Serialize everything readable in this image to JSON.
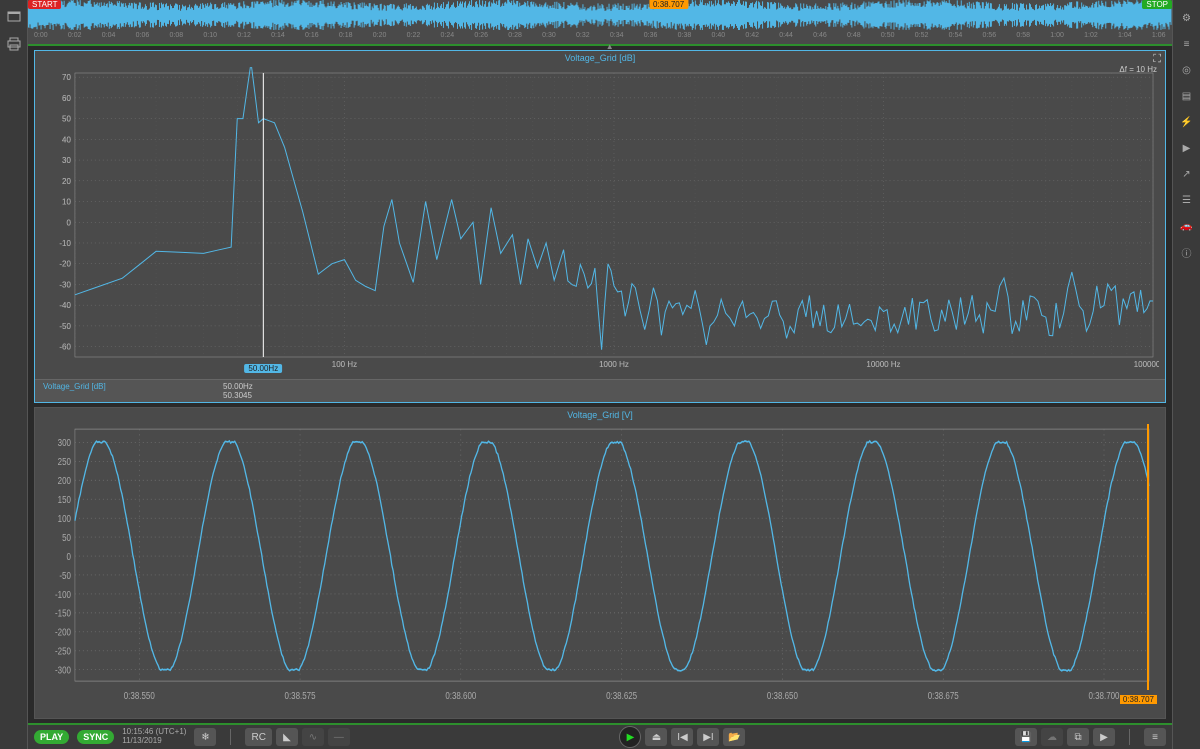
{
  "overview": {
    "start_tag": "START",
    "stop_tag": "STOP",
    "cursor_tag": "0:38.707",
    "ticks": [
      "0:00",
      "0:02",
      "0:04",
      "0:06",
      "0:08",
      "0:10",
      "0:12",
      "0:14",
      "0:16",
      "0:18",
      "0:20",
      "0:22",
      "0:24",
      "0:26",
      "0:28",
      "0:30",
      "0:32",
      "0:34",
      "0:36",
      "0:38",
      "0:40",
      "0:42",
      "0:44",
      "0:46",
      "0:48",
      "0:50",
      "0:52",
      "0:54",
      "0:56",
      "0:58",
      "1:00",
      "1:02",
      "1:04",
      "1:06"
    ]
  },
  "fft_chart": {
    "title": "Voltage_Grid [dB]",
    "delta_label": "Δf = 10 Hz",
    "type": "line-log-x",
    "y_ticks": [
      -60,
      -50,
      -40,
      -30,
      -20,
      -10,
      0,
      10,
      20,
      30,
      40,
      50,
      60,
      70
    ],
    "x_ticks": [
      {
        "v": 100,
        "l": "100 Hz"
      },
      {
        "v": 1000,
        "l": "1000 Hz"
      },
      {
        "v": 10000,
        "l": "10000 Hz"
      },
      {
        "v": 100000,
        "l": "100000 Hz"
      }
    ],
    "xlim": [
      10,
      100000
    ],
    "ylim": [
      -65,
      72
    ],
    "cursor_x": 50,
    "cursor_label": "50.00Hz",
    "readout": {
      "label": "Voltage_Grid  [dB]",
      "freq": "50.00Hz",
      "val": "50.3045"
    },
    "trace_color": "#52b7e6",
    "background_color": "#4a4a4a",
    "grid_color": "#777777",
    "data": [
      [
        10,
        -35
      ],
      [
        15,
        -27
      ],
      [
        20,
        -14
      ],
      [
        30,
        -15
      ],
      [
        38,
        -12
      ],
      [
        40,
        50
      ],
      [
        42,
        50
      ],
      [
        45,
        77
      ],
      [
        48,
        48
      ],
      [
        50,
        50
      ],
      [
        55,
        48
      ],
      [
        60,
        36
      ],
      [
        70,
        5
      ],
      [
        80,
        -25
      ],
      [
        90,
        -20
      ],
      [
        100,
        -18
      ],
      [
        110,
        -28
      ],
      [
        120,
        -31
      ],
      [
        130,
        -33
      ],
      [
        140,
        -2
      ],
      [
        150,
        11
      ],
      [
        160,
        -10
      ],
      [
        180,
        -29
      ],
      [
        200,
        10
      ],
      [
        220,
        -18
      ],
      [
        250,
        11
      ],
      [
        270,
        -8
      ],
      [
        300,
        0
      ],
      [
        320,
        -30
      ],
      [
        350,
        7
      ],
      [
        380,
        -15
      ],
      [
        420,
        -6
      ],
      [
        450,
        -30
      ],
      [
        480,
        -8
      ],
      [
        520,
        -22
      ],
      [
        560,
        -10
      ],
      [
        600,
        -28
      ],
      [
        650,
        -15
      ],
      [
        700,
        -34
      ],
      [
        750,
        -18
      ],
      [
        800,
        -30
      ],
      [
        850,
        -22
      ],
      [
        900,
        -60
      ],
      [
        950,
        -25
      ],
      [
        1000,
        -26
      ],
      [
        1100,
        -42
      ],
      [
        1200,
        -30
      ],
      [
        1300,
        -48
      ],
      [
        1400,
        -32
      ],
      [
        1500,
        -52
      ],
      [
        1600,
        -35
      ],
      [
        1800,
        -42
      ],
      [
        2000,
        -35
      ],
      [
        2200,
        -58
      ],
      [
        2500,
        -38
      ],
      [
        2800,
        -52
      ],
      [
        3000,
        -40
      ],
      [
        3500,
        -50
      ],
      [
        4000,
        -40
      ],
      [
        4500,
        -55
      ],
      [
        5000,
        -42
      ],
      [
        6000,
        -48
      ],
      [
        7000,
        -44
      ],
      [
        8000,
        -52
      ],
      [
        9000,
        -46
      ],
      [
        10000,
        -48
      ],
      [
        12000,
        -46
      ],
      [
        15000,
        -44
      ],
      [
        18000,
        -46
      ],
      [
        20000,
        -42
      ],
      [
        25000,
        -46
      ],
      [
        28000,
        -22
      ],
      [
        30000,
        -48
      ],
      [
        35000,
        -44
      ],
      [
        40000,
        -48
      ],
      [
        45000,
        -44
      ],
      [
        50000,
        -28
      ],
      [
        55000,
        -46
      ],
      [
        60000,
        -42
      ],
      [
        70000,
        -26
      ],
      [
        75000,
        -44
      ],
      [
        80000,
        -40
      ],
      [
        85000,
        -42
      ],
      [
        90000,
        -38
      ],
      [
        95000,
        -40
      ],
      [
        100000,
        -38
      ]
    ]
  },
  "time_chart": {
    "title": "Voltage_Grid [V]",
    "type": "line",
    "y_ticks": [
      -300,
      -250,
      -200,
      -150,
      -100,
      -50,
      0,
      50,
      100,
      150,
      200,
      250,
      300
    ],
    "x_ticks": [
      "0:38.550",
      "0:38.575",
      "0:38.600",
      "0:38.625",
      "0:38.650",
      "0:38.675",
      "0:38.700"
    ],
    "xlim": [
      38.54,
      38.707
    ],
    "ylim": [
      -330,
      335
    ],
    "amplitude": 310,
    "frequency_hz": 50,
    "trace_color": "#52b7e6",
    "background_color": "#4a4a4a",
    "grid_color": "#777777",
    "cursor_tag": "0:38.707"
  },
  "bottom_bar": {
    "play_label": "PLAY",
    "sync_label": "SYNC",
    "clock": "10:15:46 (UTC+1)",
    "date": "11/13/2019",
    "rc_label": "RC"
  },
  "right_tools": [
    "gear",
    "list",
    "target",
    "document",
    "bolt",
    "play",
    "share",
    "stack",
    "car",
    "info"
  ],
  "left_tools": [
    "window",
    "print"
  ]
}
